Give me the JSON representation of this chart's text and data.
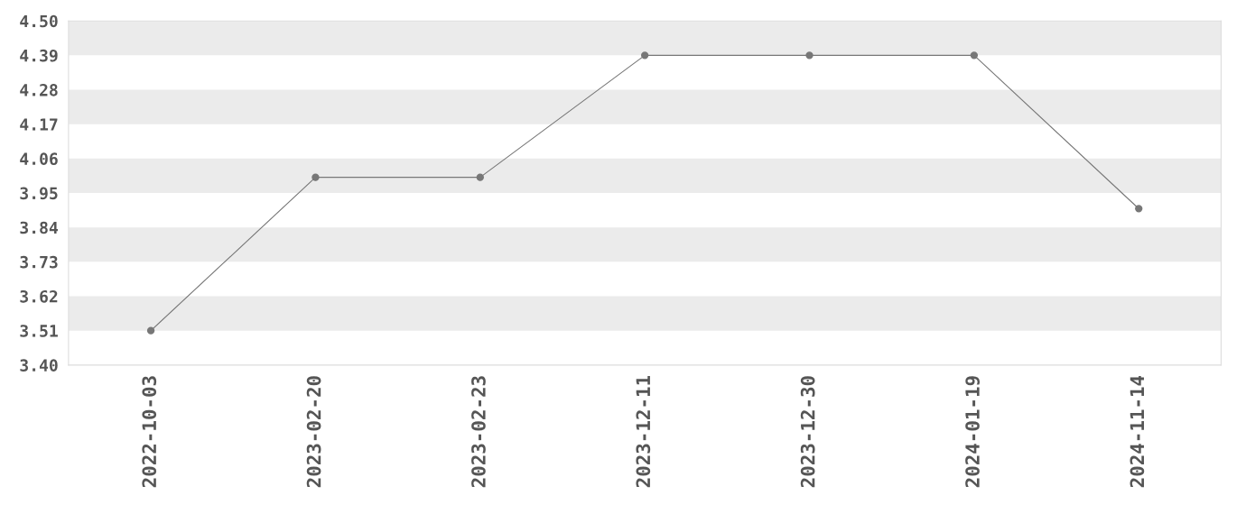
{
  "chart_data": {
    "type": "line",
    "categories": [
      "2022-10-03",
      "2023-02-20",
      "2023-02-23",
      "2023-12-11",
      "2023-12-30",
      "2024-01-19",
      "2024-11-14"
    ],
    "series": [
      {
        "color": "#777777",
        "values": [
          3.51,
          4.0,
          4.0,
          4.39,
          4.39,
          4.39,
          3.9
        ]
      }
    ],
    "ylim": [
      3.4,
      4.5
    ],
    "yticks": [
      {
        "value": 3.4,
        "label": "3.40"
      },
      {
        "value": 3.51,
        "label": "3.51"
      },
      {
        "value": 3.62,
        "label": "3.62"
      },
      {
        "value": 3.73,
        "label": "3.73"
      },
      {
        "value": 3.84,
        "label": "3.84"
      },
      {
        "value": 3.95,
        "label": "3.95"
      },
      {
        "value": 4.06,
        "label": "4.06"
      },
      {
        "value": 4.17,
        "label": "4.17"
      },
      {
        "value": 4.28,
        "label": "4.28"
      },
      {
        "value": 4.39,
        "label": "4.39"
      },
      {
        "value": 4.5,
        "label": "4.50"
      }
    ],
    "bands": [
      {
        "axis": "y",
        "from": 3.51,
        "to": 3.62,
        "color": "#ebebeb"
      },
      {
        "axis": "y",
        "from": 3.73,
        "to": 3.84,
        "color": "#ebebeb"
      },
      {
        "axis": "y",
        "from": 3.95,
        "to": 4.06,
        "color": "#ebebeb"
      },
      {
        "axis": "y",
        "from": 4.17,
        "to": 4.28,
        "color": "#ebebeb"
      },
      {
        "axis": "y",
        "from": 4.39,
        "to": 4.5,
        "color": "#ebebeb"
      }
    ],
    "marker": "circle",
    "line_style": "solid",
    "grid": false,
    "legend": false
  }
}
